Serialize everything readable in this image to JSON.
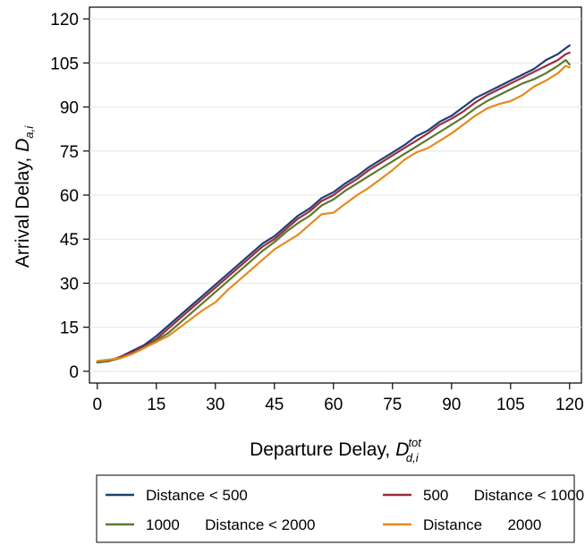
{
  "chart_data": {
    "type": "line",
    "xlabel": "Departure Delay,",
    "xlabel_symbol": {
      "base": "D",
      "sub": "d,i",
      "sup": "tot"
    },
    "ylabel": "Arrival Delay,",
    "ylabel_symbol": {
      "base": "D",
      "sub": "a,i"
    },
    "xlim": [
      -2,
      123
    ],
    "ylim": [
      -4,
      124
    ],
    "x_ticks": [
      0,
      15,
      30,
      45,
      60,
      75,
      90,
      105,
      120
    ],
    "y_ticks": [
      0,
      15,
      30,
      45,
      60,
      75,
      90,
      105,
      120
    ],
    "grid": "horizontal",
    "legend_position": "bottom",
    "x": [
      0,
      3,
      6,
      9,
      12,
      15,
      18,
      21,
      24,
      27,
      30,
      33,
      36,
      39,
      42,
      45,
      48,
      51,
      54,
      57,
      60,
      63,
      66,
      69,
      72,
      75,
      78,
      81,
      84,
      87,
      90,
      93,
      96,
      99,
      102,
      105,
      108,
      111,
      114,
      117,
      119,
      120
    ],
    "series": [
      {
        "name": "Distance < 500",
        "color": "#1f3f78",
        "values": [
          3,
          3.5,
          5,
          7,
          9,
          12,
          15.5,
          19,
          22.5,
          26,
          29.5,
          33,
          36.5,
          40,
          43.5,
          46,
          49.5,
          53,
          55.5,
          59,
          61,
          64,
          66.5,
          69.5,
          72,
          74.5,
          77,
          80,
          82,
          85,
          87,
          90,
          93,
          95,
          97,
          99,
          101,
          103,
          106,
          108,
          110,
          111
        ]
      },
      {
        "name": "500      Distance < 1000",
        "color": "#9b2d3c",
        "values": [
          3,
          3.5,
          5,
          6.5,
          8.5,
          11,
          14.5,
          18,
          21.5,
          25,
          28.5,
          32,
          35.5,
          39,
          42.5,
          45,
          48.5,
          52,
          54.5,
          58,
          60,
          63,
          65.5,
          68.5,
          71,
          73.5,
          76,
          78.5,
          81,
          84,
          86,
          88.5,
          91.5,
          94,
          96,
          98,
          100,
          102,
          104,
          106,
          108,
          108.5
        ]
      },
      {
        "name": "1000      Distance < 2000",
        "color": "#5a7a2b",
        "values": [
          3,
          3.5,
          4.5,
          6,
          8,
          10.5,
          13,
          16.5,
          20,
          23.5,
          27,
          30.5,
          34,
          37.5,
          41,
          44,
          47.5,
          50.5,
          53,
          56.5,
          58.5,
          61.5,
          64,
          66.5,
          69,
          71.5,
          74,
          76.5,
          79,
          81.5,
          84,
          86.5,
          89.5,
          92,
          94,
          96,
          98,
          99.5,
          101.5,
          104,
          106,
          104.5
        ]
      },
      {
        "name": "Distance      2000",
        "color": "#e58a1c",
        "values": [
          3.5,
          4,
          4.5,
          6,
          8,
          10,
          12,
          15,
          18,
          21,
          23.5,
          27.5,
          31,
          34.5,
          38,
          41.5,
          44,
          46.5,
          50,
          53.5,
          54,
          57,
          60,
          62.5,
          65.5,
          68.5,
          72,
          74.5,
          76,
          78.5,
          81,
          84,
          87,
          89.5,
          91,
          92,
          94,
          97,
          99,
          101.5,
          104,
          103.5
        ]
      }
    ]
  }
}
